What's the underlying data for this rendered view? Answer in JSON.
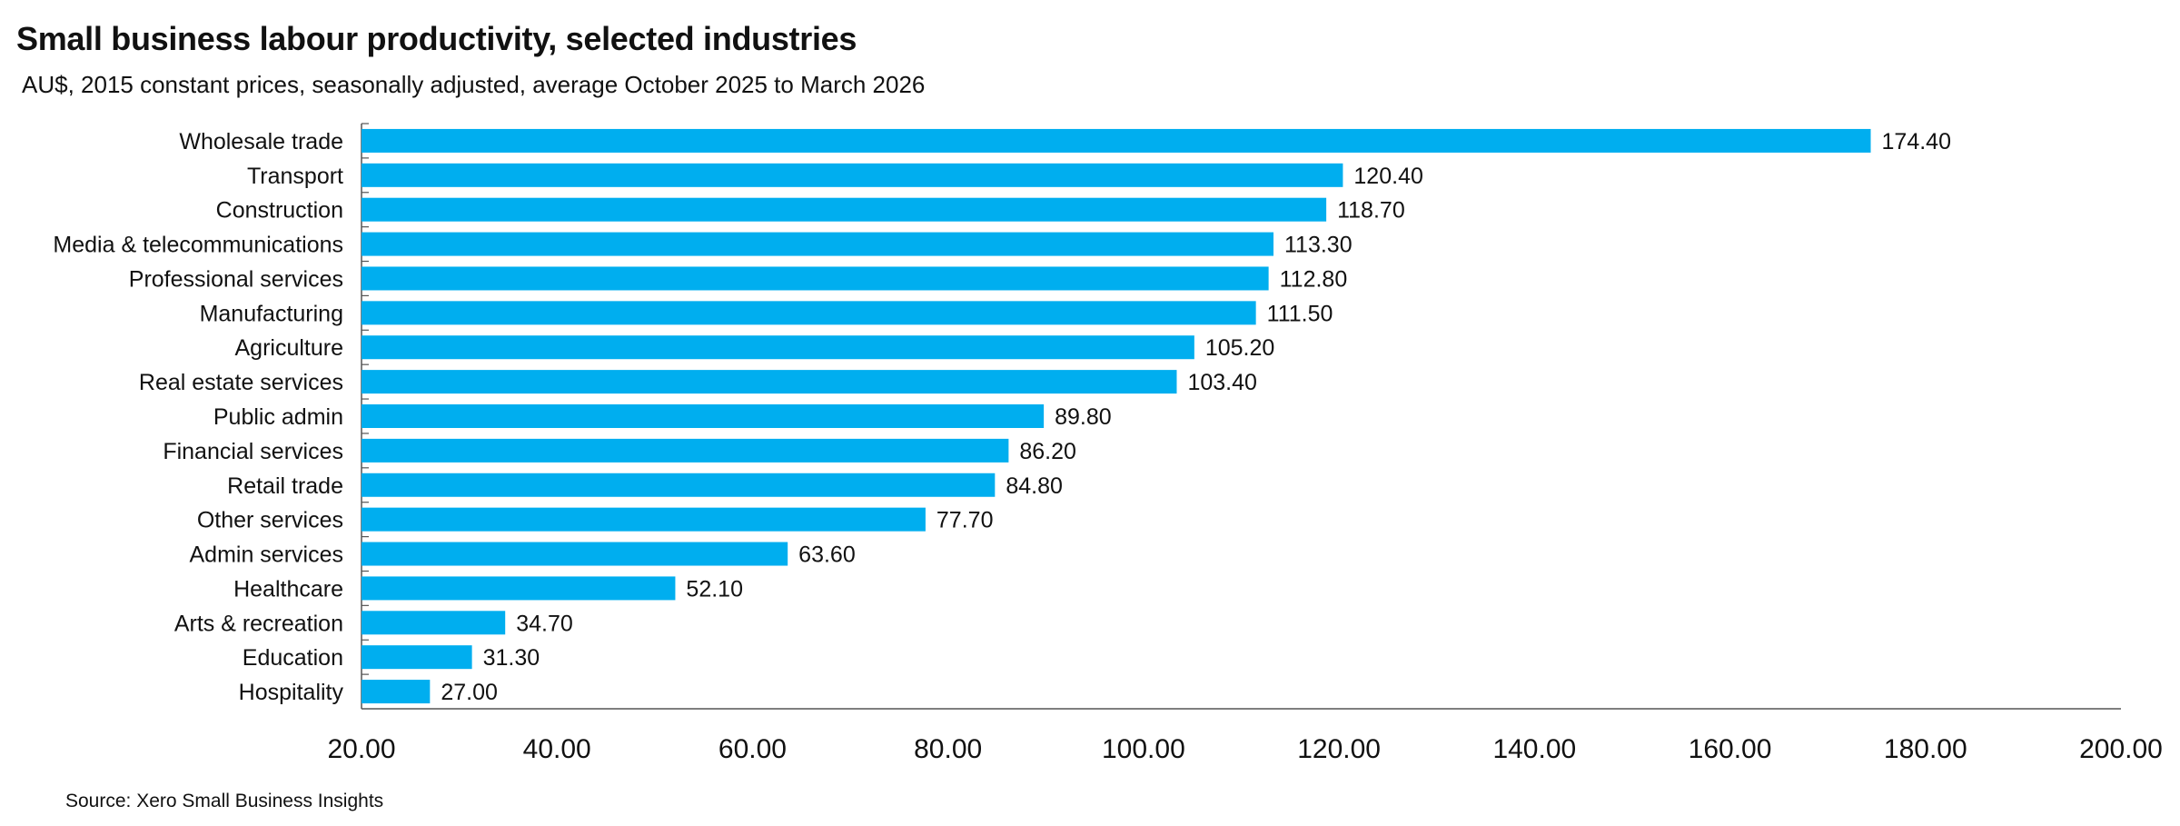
{
  "chart_data": {
    "type": "bar",
    "orientation": "horizontal",
    "title": "Small business labour productivity, selected industries",
    "subtitle": "AU$, 2015 constant prices, seasonally adjusted, average October 2025 to March 2026",
    "source": "Source: Xero Small Business Insights",
    "categories": [
      "Wholesale trade",
      "Transport",
      "Construction",
      "Media & telecommunications",
      "Professional services",
      "Manufacturing",
      "Agriculture",
      "Real estate services",
      "Public admin",
      "Financial services",
      "Retail trade",
      "Other services",
      "Admin services",
      "Healthcare",
      "Arts & recreation",
      "Education",
      "Hospitality"
    ],
    "values": [
      174.4,
      120.4,
      118.7,
      113.3,
      112.8,
      111.5,
      105.2,
      103.4,
      89.8,
      86.2,
      84.8,
      77.7,
      63.6,
      52.1,
      34.7,
      31.3,
      27.0
    ],
    "value_labels": [
      "174.40",
      "120.40",
      "118.70",
      "113.30",
      "112.80",
      "111.50",
      "105.20",
      "103.40",
      "89.80",
      "86.20",
      "84.80",
      "77.70",
      "63.60",
      "52.10",
      "34.70",
      "31.30",
      "27.00"
    ],
    "xlim": [
      20,
      200
    ],
    "xticks": [
      20,
      40,
      60,
      80,
      100,
      120,
      140,
      160,
      180,
      200
    ],
    "xtick_labels": [
      "20.00",
      "40.00",
      "60.00",
      "80.00",
      "100.00",
      "120.00",
      "140.00",
      "160.00",
      "180.00",
      "200.00"
    ],
    "xlabel": "",
    "ylabel": "",
    "grid": false,
    "legend": "none",
    "bar_color": "#00AEEF",
    "axis_color": "#555555"
  }
}
